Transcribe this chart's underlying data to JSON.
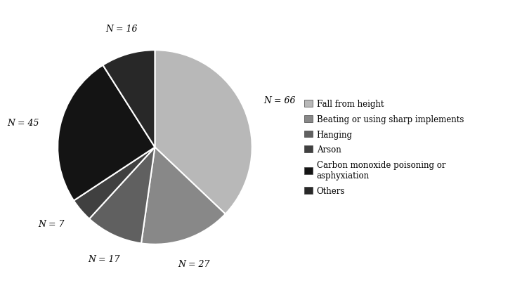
{
  "values": [
    66,
    27,
    17,
    7,
    45,
    16
  ],
  "colors": [
    "#b8b8b8",
    "#888888",
    "#606060",
    "#404040",
    "#141414",
    "#282828"
  ],
  "labels": [
    "N = 66",
    "N = 27",
    "N = 17",
    "N = 7",
    "N = 45",
    "N = 16"
  ],
  "legend_labels": [
    "Fall from height",
    "Beating or using sharp implements",
    "Hanging",
    "Arson",
    "Carbon monoxide poisoning or\nasphyxiation",
    "Others"
  ],
  "background_color": "#ffffff",
  "wedge_edge_color": "#ffffff",
  "wedge_linewidth": 1.5
}
